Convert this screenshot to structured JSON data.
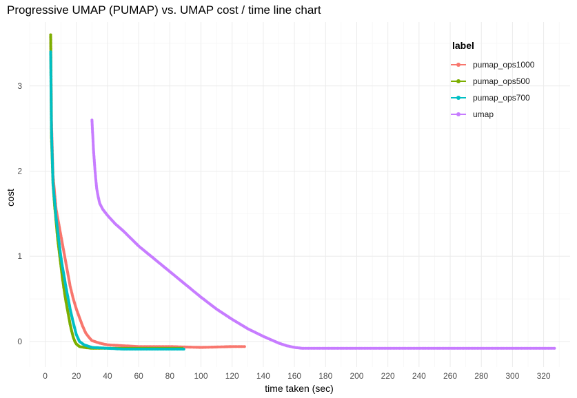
{
  "chart_data": {
    "type": "line",
    "title": "Progressive UMAP (PUMAP) vs. UMAP cost / time line chart",
    "xlabel": "time taken (sec)",
    "ylabel": "cost",
    "xlim": [
      -10,
      337
    ],
    "ylim": [
      -0.3,
      3.75
    ],
    "xticks": [
      0,
      20,
      40,
      60,
      80,
      100,
      120,
      140,
      160,
      180,
      200,
      220,
      240,
      260,
      280,
      300,
      320
    ],
    "yticks": [
      0,
      1,
      2,
      3
    ],
    "grid": true,
    "legend": {
      "title": "label",
      "position": "top-right"
    },
    "series": [
      {
        "name": "pumap_ops1000",
        "color": "#F8766D",
        "x": [
          3.5,
          4,
          5,
          6,
          7,
          8,
          9,
          10,
          11,
          12,
          13,
          14,
          15,
          16,
          18,
          20,
          22,
          24,
          26,
          28,
          30,
          35,
          40,
          50,
          60,
          80,
          100,
          120,
          128
        ],
        "y": [
          3.6,
          2.6,
          1.95,
          1.75,
          1.55,
          1.45,
          1.35,
          1.25,
          1.15,
          1.05,
          0.95,
          0.85,
          0.75,
          0.65,
          0.5,
          0.38,
          0.28,
          0.18,
          0.1,
          0.05,
          0.01,
          -0.02,
          -0.04,
          -0.05,
          -0.06,
          -0.06,
          -0.07,
          -0.06,
          -0.06
        ]
      },
      {
        "name": "pumap_ops500",
        "color": "#7CAE00",
        "x": [
          3.5,
          4,
          5,
          6,
          7,
          8,
          9,
          10,
          11,
          12,
          13,
          14,
          15,
          16,
          17,
          18,
          19,
          20,
          22,
          25,
          30,
          40,
          50,
          60,
          70,
          80,
          88
        ],
        "y": [
          3.6,
          2.4,
          1.85,
          1.6,
          1.4,
          1.2,
          1.05,
          0.9,
          0.75,
          0.62,
          0.5,
          0.4,
          0.3,
          0.2,
          0.12,
          0.05,
          0.0,
          -0.03,
          -0.06,
          -0.07,
          -0.08,
          -0.08,
          -0.08,
          -0.08,
          -0.08,
          -0.08,
          -0.08
        ]
      },
      {
        "name": "pumap_ops700",
        "color": "#00BFC4",
        "x": [
          3.5,
          4,
          5,
          6,
          7,
          8,
          9,
          10,
          11,
          12,
          13,
          14,
          15,
          16,
          17,
          18,
          19,
          20,
          22,
          25,
          30,
          40,
          50,
          60,
          70,
          80,
          89
        ],
        "y": [
          3.4,
          2.5,
          1.85,
          1.65,
          1.45,
          1.3,
          1.15,
          1.0,
          0.88,
          0.78,
          0.67,
          0.57,
          0.48,
          0.38,
          0.3,
          0.22,
          0.15,
          0.08,
          0.0,
          -0.04,
          -0.07,
          -0.08,
          -0.09,
          -0.09,
          -0.09,
          -0.09,
          -0.09
        ]
      },
      {
        "name": "umap",
        "color": "#C77CFF",
        "x": [
          30,
          31,
          32,
          33,
          34,
          35,
          37,
          40,
          45,
          50,
          60,
          70,
          80,
          90,
          100,
          110,
          120,
          130,
          140,
          150,
          155,
          160,
          165,
          170,
          180,
          200,
          250,
          300,
          327
        ],
        "y": [
          2.6,
          2.25,
          2.0,
          1.8,
          1.7,
          1.62,
          1.55,
          1.48,
          1.38,
          1.3,
          1.12,
          0.97,
          0.82,
          0.67,
          0.52,
          0.38,
          0.26,
          0.15,
          0.06,
          -0.02,
          -0.05,
          -0.07,
          -0.08,
          -0.08,
          -0.08,
          -0.08,
          -0.08,
          -0.08,
          -0.08
        ]
      }
    ]
  }
}
